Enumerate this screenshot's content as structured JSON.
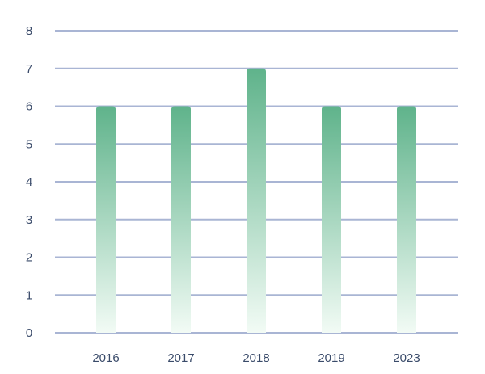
{
  "chart_data": {
    "type": "bar",
    "categories": [
      "2016",
      "2017",
      "2018",
      "2019",
      "2023"
    ],
    "values": [
      6,
      6,
      7,
      6,
      6
    ],
    "title": "",
    "xlabel": "",
    "ylabel": "",
    "ylim": [
      0,
      8
    ],
    "yticks": [
      "0",
      "1",
      "2",
      "3",
      "4",
      "5",
      "6",
      "7",
      "8"
    ],
    "grid": true,
    "legend": "none",
    "colors": {
      "bar_top": "#5fb38b",
      "bar_bottom": "#f2fbf5",
      "grid": "#a9b5d4",
      "tick_text": "#3a4b6a"
    }
  }
}
